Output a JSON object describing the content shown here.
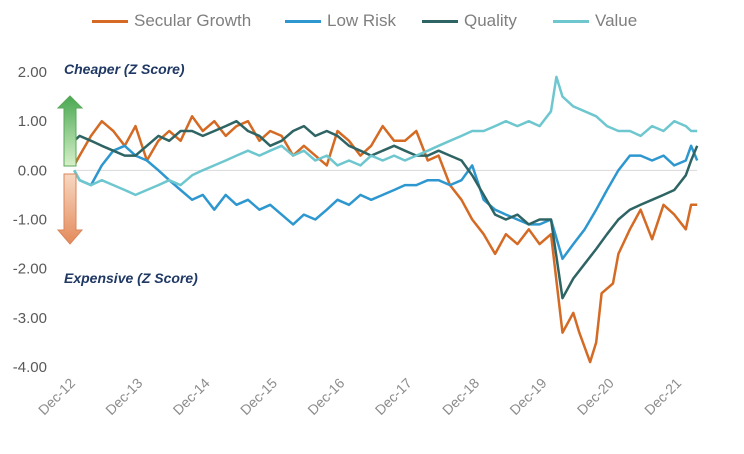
{
  "chart_data": {
    "type": "line",
    "ylabel": "",
    "xlabel": "",
    "ylim": [
      -4.0,
      2.0
    ],
    "yticks": [
      "2.00",
      "1.00",
      "0.00",
      "-1.00",
      "-2.00",
      "-3.00",
      "-4.00"
    ],
    "ytick_values": [
      2,
      1,
      0,
      -1,
      -2,
      -3,
      -4
    ],
    "xticks": [
      "Dec-12",
      "Dec-13",
      "Dec-14",
      "Dec-15",
      "Dec-16",
      "Dec-17",
      "Dec-18",
      "Dec-19",
      "Dec-20",
      "Dec-21"
    ],
    "xtick_values": [
      2012.917,
      2013.917,
      2014.917,
      2015.917,
      2016.917,
      2017.917,
      2018.917,
      2019.917,
      2020.917,
      2021.917
    ],
    "xlim": [
      2012.917,
      2022.167
    ],
    "legend_position": "top",
    "annotations": {
      "cheaper": "Cheaper (Z Score)",
      "expensive": "Expensive (Z Score)"
    },
    "series": [
      {
        "name": "Secular Growth",
        "color": "#d46a23",
        "points": [
          [
            2012.92,
            0.1
          ],
          [
            2013.0,
            0.3
          ],
          [
            2013.17,
            0.7
          ],
          [
            2013.33,
            1.0
          ],
          [
            2013.5,
            0.8
          ],
          [
            2013.67,
            0.5
          ],
          [
            2013.83,
            0.9
          ],
          [
            2014.0,
            0.2
          ],
          [
            2014.17,
            0.6
          ],
          [
            2014.33,
            0.8
          ],
          [
            2014.5,
            0.6
          ],
          [
            2014.67,
            1.1
          ],
          [
            2014.83,
            0.8
          ],
          [
            2015.0,
            1.0
          ],
          [
            2015.17,
            0.7
          ],
          [
            2015.33,
            0.9
          ],
          [
            2015.5,
            1.0
          ],
          [
            2015.67,
            0.6
          ],
          [
            2015.83,
            0.8
          ],
          [
            2016.0,
            0.7
          ],
          [
            2016.17,
            0.3
          ],
          [
            2016.33,
            0.5
          ],
          [
            2016.5,
            0.3
          ],
          [
            2016.67,
            0.1
          ],
          [
            2016.83,
            0.8
          ],
          [
            2017.0,
            0.6
          ],
          [
            2017.17,
            0.3
          ],
          [
            2017.33,
            0.5
          ],
          [
            2017.5,
            0.9
          ],
          [
            2017.67,
            0.6
          ],
          [
            2017.83,
            0.6
          ],
          [
            2018.0,
            0.8
          ],
          [
            2018.17,
            0.2
          ],
          [
            2018.33,
            0.3
          ],
          [
            2018.5,
            -0.3
          ],
          [
            2018.67,
            -0.6
          ],
          [
            2018.83,
            -1.0
          ],
          [
            2019.0,
            -1.3
          ],
          [
            2019.17,
            -1.7
          ],
          [
            2019.33,
            -1.3
          ],
          [
            2019.5,
            -1.5
          ],
          [
            2019.67,
            -1.2
          ],
          [
            2019.83,
            -1.5
          ],
          [
            2020.0,
            -1.3
          ],
          [
            2020.17,
            -3.3
          ],
          [
            2020.33,
            -2.9
          ],
          [
            2020.42,
            -3.3
          ],
          [
            2020.58,
            -3.9
          ],
          [
            2020.67,
            -3.5
          ],
          [
            2020.75,
            -2.5
          ],
          [
            2020.92,
            -2.3
          ],
          [
            2021.0,
            -1.7
          ],
          [
            2021.17,
            -1.2
          ],
          [
            2021.33,
            -0.8
          ],
          [
            2021.5,
            -1.4
          ],
          [
            2021.67,
            -0.7
          ],
          [
            2021.83,
            -0.9
          ],
          [
            2022.0,
            -1.2
          ],
          [
            2022.08,
            -0.7
          ],
          [
            2022.17,
            -0.7
          ]
        ]
      },
      {
        "name": "Low Risk",
        "color": "#2e97cf",
        "points": [
          [
            2012.92,
            0.0
          ],
          [
            2013.0,
            -0.2
          ],
          [
            2013.17,
            -0.3
          ],
          [
            2013.33,
            0.1
          ],
          [
            2013.5,
            0.4
          ],
          [
            2013.67,
            0.5
          ],
          [
            2013.83,
            0.3
          ],
          [
            2014.0,
            0.2
          ],
          [
            2014.17,
            0.0
          ],
          [
            2014.33,
            -0.2
          ],
          [
            2014.5,
            -0.4
          ],
          [
            2014.67,
            -0.6
          ],
          [
            2014.83,
            -0.5
          ],
          [
            2015.0,
            -0.8
          ],
          [
            2015.17,
            -0.5
          ],
          [
            2015.33,
            -0.7
          ],
          [
            2015.5,
            -0.6
          ],
          [
            2015.67,
            -0.8
          ],
          [
            2015.83,
            -0.7
          ],
          [
            2016.0,
            -0.9
          ],
          [
            2016.17,
            -1.1
          ],
          [
            2016.33,
            -0.9
          ],
          [
            2016.5,
            -1.0
          ],
          [
            2016.67,
            -0.8
          ],
          [
            2016.83,
            -0.6
          ],
          [
            2017.0,
            -0.7
          ],
          [
            2017.17,
            -0.5
          ],
          [
            2017.33,
            -0.6
          ],
          [
            2017.5,
            -0.5
          ],
          [
            2017.67,
            -0.4
          ],
          [
            2017.83,
            -0.3
          ],
          [
            2018.0,
            -0.3
          ],
          [
            2018.17,
            -0.2
          ],
          [
            2018.33,
            -0.2
          ],
          [
            2018.5,
            -0.3
          ],
          [
            2018.67,
            -0.2
          ],
          [
            2018.83,
            0.1
          ],
          [
            2019.0,
            -0.6
          ],
          [
            2019.17,
            -0.8
          ],
          [
            2019.33,
            -0.9
          ],
          [
            2019.5,
            -1.0
          ],
          [
            2019.67,
            -1.1
          ],
          [
            2019.83,
            -1.1
          ],
          [
            2020.0,
            -1.0
          ],
          [
            2020.17,
            -1.8
          ],
          [
            2020.33,
            -1.5
          ],
          [
            2020.5,
            -1.2
          ],
          [
            2020.67,
            -0.8
          ],
          [
            2020.83,
            -0.4
          ],
          [
            2021.0,
            0.0
          ],
          [
            2021.17,
            0.3
          ],
          [
            2021.33,
            0.3
          ],
          [
            2021.5,
            0.2
          ],
          [
            2021.67,
            0.3
          ],
          [
            2021.83,
            0.1
          ],
          [
            2022.0,
            0.2
          ],
          [
            2022.08,
            0.5
          ],
          [
            2022.17,
            0.2
          ]
        ]
      },
      {
        "name": "Quality",
        "color": "#2e6463",
        "points": [
          [
            2012.92,
            0.6
          ],
          [
            2013.0,
            0.7
          ],
          [
            2013.17,
            0.6
          ],
          [
            2013.33,
            0.5
          ],
          [
            2013.5,
            0.4
          ],
          [
            2013.67,
            0.3
          ],
          [
            2013.83,
            0.3
          ],
          [
            2014.0,
            0.5
          ],
          [
            2014.17,
            0.7
          ],
          [
            2014.33,
            0.6
          ],
          [
            2014.5,
            0.8
          ],
          [
            2014.67,
            0.8
          ],
          [
            2014.83,
            0.7
          ],
          [
            2015.0,
            0.8
          ],
          [
            2015.17,
            0.9
          ],
          [
            2015.33,
            1.0
          ],
          [
            2015.5,
            0.8
          ],
          [
            2015.67,
            0.7
          ],
          [
            2015.83,
            0.5
          ],
          [
            2016.0,
            0.6
          ],
          [
            2016.17,
            0.8
          ],
          [
            2016.33,
            0.9
          ],
          [
            2016.5,
            0.7
          ],
          [
            2016.67,
            0.8
          ],
          [
            2016.83,
            0.7
          ],
          [
            2017.0,
            0.5
          ],
          [
            2017.17,
            0.4
          ],
          [
            2017.33,
            0.3
          ],
          [
            2017.5,
            0.4
          ],
          [
            2017.67,
            0.5
          ],
          [
            2017.83,
            0.4
          ],
          [
            2018.0,
            0.3
          ],
          [
            2018.17,
            0.3
          ],
          [
            2018.33,
            0.4
          ],
          [
            2018.5,
            0.3
          ],
          [
            2018.67,
            0.2
          ],
          [
            2018.83,
            -0.1
          ],
          [
            2019.0,
            -0.5
          ],
          [
            2019.17,
            -0.9
          ],
          [
            2019.33,
            -1.0
          ],
          [
            2019.5,
            -0.9
          ],
          [
            2019.67,
            -1.1
          ],
          [
            2019.83,
            -1.0
          ],
          [
            2020.0,
            -1.0
          ],
          [
            2020.17,
            -2.6
          ],
          [
            2020.33,
            -2.2
          ],
          [
            2020.5,
            -1.9
          ],
          [
            2020.67,
            -1.6
          ],
          [
            2020.83,
            -1.3
          ],
          [
            2021.0,
            -1.0
          ],
          [
            2021.17,
            -0.8
          ],
          [
            2021.33,
            -0.7
          ],
          [
            2021.5,
            -0.6
          ],
          [
            2021.67,
            -0.5
          ],
          [
            2021.83,
            -0.4
          ],
          [
            2022.0,
            -0.1
          ],
          [
            2022.08,
            0.2
          ],
          [
            2022.17,
            0.5
          ]
        ]
      },
      {
        "name": "Value",
        "color": "#6ec7cf",
        "points": [
          [
            2012.92,
            0.0
          ],
          [
            2013.0,
            -0.2
          ],
          [
            2013.17,
            -0.3
          ],
          [
            2013.33,
            -0.2
          ],
          [
            2013.5,
            -0.3
          ],
          [
            2013.67,
            -0.4
          ],
          [
            2013.83,
            -0.5
          ],
          [
            2014.0,
            -0.4
          ],
          [
            2014.17,
            -0.3
          ],
          [
            2014.33,
            -0.2
          ],
          [
            2014.5,
            -0.3
          ],
          [
            2014.67,
            -0.1
          ],
          [
            2014.83,
            0.0
          ],
          [
            2015.0,
            0.1
          ],
          [
            2015.17,
            0.2
          ],
          [
            2015.33,
            0.3
          ],
          [
            2015.5,
            0.4
          ],
          [
            2015.67,
            0.3
          ],
          [
            2015.83,
            0.4
          ],
          [
            2016.0,
            0.5
          ],
          [
            2016.17,
            0.3
          ],
          [
            2016.33,
            0.4
          ],
          [
            2016.5,
            0.2
          ],
          [
            2016.67,
            0.3
          ],
          [
            2016.83,
            0.1
          ],
          [
            2017.0,
            0.2
          ],
          [
            2017.17,
            0.1
          ],
          [
            2017.33,
            0.3
          ],
          [
            2017.5,
            0.2
          ],
          [
            2017.67,
            0.3
          ],
          [
            2017.83,
            0.2
          ],
          [
            2018.0,
            0.3
          ],
          [
            2018.17,
            0.4
          ],
          [
            2018.33,
            0.5
          ],
          [
            2018.5,
            0.6
          ],
          [
            2018.67,
            0.7
          ],
          [
            2018.83,
            0.8
          ],
          [
            2019.0,
            0.8
          ],
          [
            2019.17,
            0.9
          ],
          [
            2019.33,
            1.0
          ],
          [
            2019.5,
            0.9
          ],
          [
            2019.67,
            1.0
          ],
          [
            2019.83,
            0.9
          ],
          [
            2020.0,
            1.2
          ],
          [
            2020.08,
            1.9
          ],
          [
            2020.17,
            1.5
          ],
          [
            2020.33,
            1.3
          ],
          [
            2020.5,
            1.2
          ],
          [
            2020.67,
            1.1
          ],
          [
            2020.83,
            0.9
          ],
          [
            2021.0,
            0.8
          ],
          [
            2021.17,
            0.8
          ],
          [
            2021.33,
            0.7
          ],
          [
            2021.5,
            0.9
          ],
          [
            2021.67,
            0.8
          ],
          [
            2021.83,
            1.0
          ],
          [
            2022.0,
            0.9
          ],
          [
            2022.08,
            0.8
          ],
          [
            2022.17,
            0.8
          ]
        ]
      }
    ]
  }
}
